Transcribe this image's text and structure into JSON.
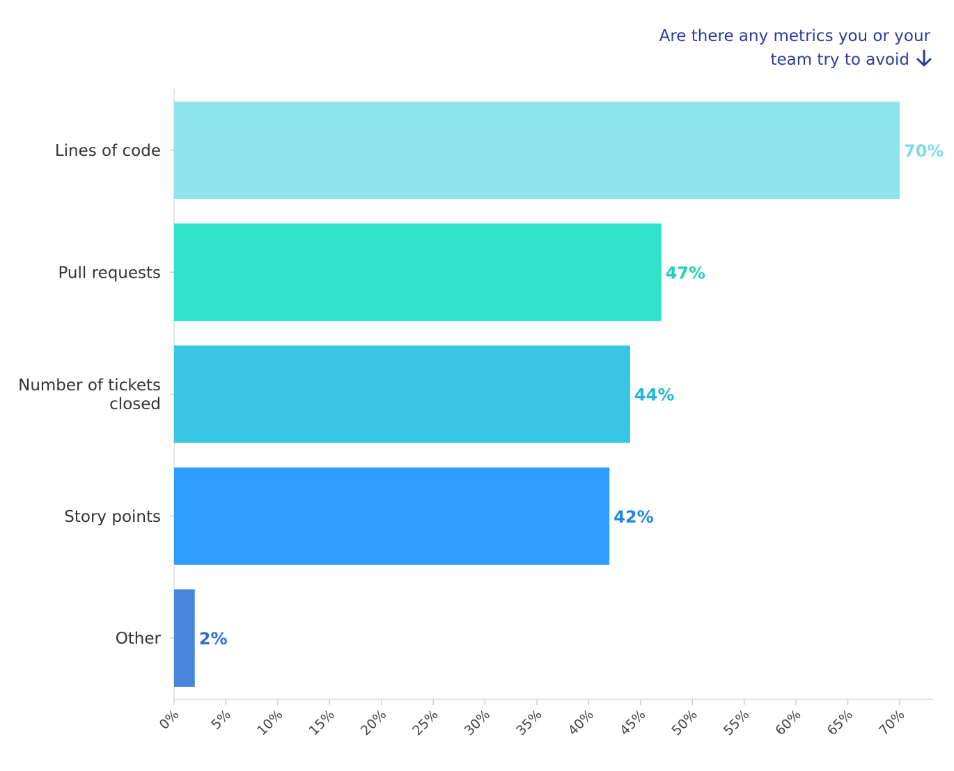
{
  "chart_data": {
    "type": "bar",
    "orientation": "horizontal",
    "title_lines": [
      "Are there any metrics you or your",
      "team try to avoid"
    ],
    "title_icon": "arrow-down-icon",
    "categories": [
      {
        "lines": [
          "Lines of code"
        ]
      },
      {
        "lines": [
          "Pull requests"
        ]
      },
      {
        "lines": [
          "Number of tickets",
          "closed"
        ]
      },
      {
        "lines": [
          "Story points"
        ]
      },
      {
        "lines": [
          "Other"
        ]
      }
    ],
    "values": [
      70,
      47,
      44,
      42,
      2
    ],
    "value_labels": [
      "70%",
      "47%",
      "44%",
      "42%",
      "2%"
    ],
    "bar_colors": [
      "#8ee5ec",
      "#2fe3c9",
      "#37c6e3",
      "#2f9dff",
      "#4886dc"
    ],
    "label_colors": [
      "#7fdce4",
      "#22d1b6",
      "#1fb7db",
      "#1f86e8",
      "#2f6fd0"
    ],
    "xlim": [
      0,
      70
    ],
    "x_ticks": [
      "0%",
      "5%",
      "10%",
      "15%",
      "20%",
      "25%",
      "30%",
      "35%",
      "40%",
      "45%",
      "50%",
      "55%",
      "60%",
      "65%",
      "70%"
    ],
    "xlabel": "",
    "ylabel": "",
    "grid": false
  }
}
